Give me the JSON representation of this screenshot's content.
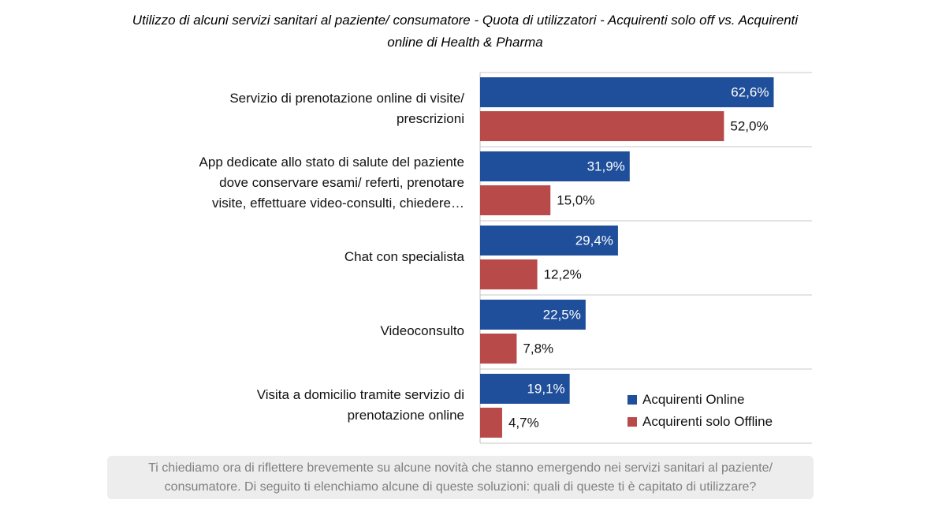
{
  "title": {
    "line1": "Utilizzo di alcuni servizi sanitari al paziente/ consumatore - Quota di utilizzatori - Acquirenti solo off vs. Acquirenti",
    "line2": "online di Health & Pharma"
  },
  "chart_data": {
    "type": "bar",
    "orientation": "horizontal",
    "categories": [
      [
        "Servizio di prenotazione online di visite/",
        "prescrizioni"
      ],
      [
        "App dedicate allo stato di salute del paziente",
        "dove conservare esami/ referti, prenotare",
        "visite, effettuare video-consulti, chiedere…"
      ],
      [
        "Chat con specialista"
      ],
      [
        "Videoconsulto"
      ],
      [
        "Visita a domicilio tramite servizio di",
        "prenotazione online"
      ]
    ],
    "series": [
      {
        "name": "Acquirenti Online",
        "color": "#1f4e9a",
        "values": [
          62.6,
          31.9,
          29.4,
          22.5,
          19.1
        ],
        "labels": [
          "62,6%",
          "31,9%",
          "29,4%",
          "22,5%",
          "19,1%"
        ]
      },
      {
        "name": "Acquirenti solo Offline",
        "color": "#b84a4a",
        "values": [
          52.0,
          15.0,
          12.2,
          7.8,
          4.7
        ],
        "labels": [
          "52,0%",
          "15,0%",
          "12,2%",
          "7,8%",
          "4,7%"
        ]
      }
    ],
    "xlim": [
      0,
      70
    ],
    "grid": false,
    "legend_position": "bottom-right"
  },
  "footnote": {
    "line1": "Ti chiediamo ora di riflettere brevemente su alcune novità che stanno emergendo nei servizi sanitari al paziente/",
    "line2": "consumatore. Di seguito ti elenchiamo alcune di queste soluzioni: quali di queste ti è capitato di utilizzare?"
  }
}
